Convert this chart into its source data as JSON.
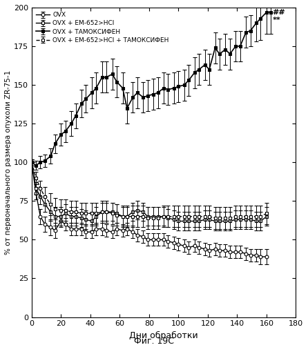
{
  "xlabel": "Дни обработки",
  "ylabel": "% от первоначального размера опухоли ZR-75-1",
  "figsize": [
    4.46,
    5.0
  ],
  "dpi": 100,
  "xlim": [
    0,
    180
  ],
  "ylim": [
    0,
    200
  ],
  "xticks": [
    0,
    20,
    40,
    60,
    80,
    100,
    120,
    140,
    160,
    180
  ],
  "yticks": [
    0,
    25,
    50,
    75,
    100,
    125,
    150,
    175,
    200
  ],
  "caption": "Фиг. 19С",
  "ovx": {
    "x": [
      0,
      3,
      6,
      9,
      13,
      16,
      20,
      23,
      27,
      30,
      34,
      37,
      41,
      44,
      48,
      51,
      55,
      58,
      62,
      65,
      69,
      72,
      76,
      79,
      83,
      86,
      90,
      93,
      97,
      100,
      104,
      107,
      111,
      114,
      118,
      121,
      125,
      128,
      132,
      135,
      139,
      142,
      146,
      149,
      153,
      156,
      160
    ],
    "y": [
      100,
      80,
      65,
      60,
      58,
      56,
      62,
      60,
      57,
      57,
      57,
      55,
      55,
      57,
      57,
      56,
      55,
      57,
      56,
      57,
      55,
      53,
      52,
      50,
      50,
      50,
      50,
      49,
      48,
      47,
      46,
      45,
      46,
      45,
      44,
      43,
      44,
      43,
      43,
      42,
      42,
      42,
      41,
      40,
      40,
      39,
      39
    ],
    "yerr": [
      2,
      4,
      5,
      5,
      5,
      5,
      4,
      4,
      4,
      4,
      4,
      4,
      4,
      4,
      4,
      4,
      4,
      4,
      4,
      4,
      4,
      4,
      4,
      4,
      4,
      4,
      4,
      4,
      4,
      4,
      4,
      4,
      4,
      4,
      4,
      4,
      4,
      4,
      4,
      4,
      4,
      4,
      4,
      4,
      4,
      5,
      5
    ],
    "color": "#000000",
    "marker": "o",
    "mfc": "white",
    "linestyle": "-",
    "label": "OVX",
    "lw": 1.0
  },
  "ovx_em": {
    "x": [
      0,
      3,
      6,
      9,
      13,
      16,
      20,
      23,
      27,
      30,
      34,
      37,
      41,
      44,
      48,
      51,
      55,
      58,
      62,
      65,
      69,
      72,
      76,
      79,
      83,
      86,
      90,
      93,
      97,
      100,
      104,
      107,
      111,
      114,
      118,
      121,
      125,
      128,
      132,
      135,
      139,
      142,
      146,
      149,
      153,
      156,
      160
    ],
    "y": [
      100,
      83,
      78,
      73,
      68,
      65,
      65,
      67,
      65,
      65,
      64,
      63,
      62,
      65,
      68,
      68,
      68,
      67,
      65,
      65,
      68,
      69,
      68,
      65,
      65,
      65,
      65,
      64,
      63,
      62,
      62,
      62,
      62,
      62,
      63,
      63,
      62,
      62,
      62,
      62,
      63,
      63,
      63,
      63,
      62,
      62,
      65
    ],
    "yerr": [
      2,
      4,
      5,
      5,
      6,
      6,
      6,
      6,
      6,
      6,
      6,
      6,
      6,
      6,
      6,
      6,
      6,
      6,
      6,
      6,
      6,
      6,
      6,
      6,
      6,
      6,
      6,
      6,
      6,
      6,
      6,
      6,
      6,
      6,
      6,
      6,
      6,
      6,
      6,
      6,
      6,
      6,
      6,
      6,
      6,
      6,
      6
    ],
    "color": "#000000",
    "marker": "s",
    "mfc": "white",
    "linestyle": "-",
    "label": "OVX + EM-652>HCl",
    "lw": 1.0
  },
  "ovx_tam": {
    "x": [
      0,
      3,
      6,
      9,
      13,
      16,
      20,
      23,
      27,
      30,
      34,
      37,
      41,
      44,
      48,
      51,
      55,
      58,
      62,
      65,
      69,
      72,
      76,
      79,
      83,
      86,
      90,
      93,
      97,
      100,
      104,
      107,
      111,
      114,
      118,
      121,
      125,
      128,
      132,
      135,
      139,
      142,
      146,
      149,
      153,
      156,
      160,
      163
    ],
    "y": [
      100,
      98,
      100,
      101,
      104,
      112,
      118,
      120,
      125,
      130,
      138,
      141,
      145,
      148,
      155,
      155,
      157,
      152,
      148,
      135,
      142,
      145,
      142,
      143,
      144,
      145,
      148,
      147,
      148,
      149,
      150,
      153,
      158,
      160,
      163,
      160,
      174,
      170,
      173,
      170,
      175,
      175,
      184,
      185,
      190,
      193,
      197,
      197
    ],
    "yerr": [
      2,
      3,
      4,
      4,
      5,
      6,
      7,
      7,
      8,
      8,
      9,
      9,
      10,
      10,
      10,
      10,
      10,
      10,
      10,
      10,
      10,
      10,
      10,
      10,
      10,
      10,
      10,
      10,
      10,
      10,
      10,
      10,
      10,
      10,
      10,
      10,
      10,
      10,
      10,
      10,
      10,
      10,
      10,
      10,
      12,
      14,
      14,
      14
    ],
    "color": "#000000",
    "marker": "s",
    "mfc": "#000000",
    "linestyle": "-",
    "label": "OVX + ТАМОКСИФЕН",
    "lw": 1.2
  },
  "ovx_em_tam": {
    "x": [
      0,
      3,
      6,
      9,
      13,
      16,
      20,
      23,
      27,
      30,
      34,
      37,
      41,
      44,
      48,
      51,
      55,
      58,
      62,
      65,
      69,
      72,
      76,
      79,
      83,
      86,
      90,
      93,
      97,
      100,
      104,
      107,
      111,
      114,
      118,
      121,
      125,
      128,
      132,
      135,
      139,
      142,
      146,
      149,
      153,
      156,
      160
    ],
    "y": [
      100,
      90,
      83,
      78,
      73,
      70,
      69,
      69,
      68,
      68,
      67,
      67,
      67,
      67,
      68,
      68,
      67,
      66,
      65,
      65,
      65,
      65,
      65,
      64,
      64,
      64,
      65,
      65,
      65,
      65,
      65,
      65,
      65,
      65,
      65,
      65,
      64,
      64,
      64,
      64,
      65,
      65,
      65,
      65,
      65,
      65,
      67
    ],
    "yerr": [
      2,
      4,
      5,
      6,
      7,
      7,
      7,
      7,
      7,
      7,
      7,
      7,
      7,
      7,
      7,
      7,
      7,
      7,
      7,
      7,
      7,
      7,
      7,
      7,
      7,
      7,
      7,
      7,
      7,
      7,
      7,
      7,
      7,
      7,
      7,
      7,
      7,
      7,
      7,
      7,
      7,
      7,
      7,
      7,
      7,
      7,
      7
    ],
    "color": "#000000",
    "marker": "s",
    "mfc": "white",
    "linestyle": "--",
    "label": "OVX + EM-652>HCl + ТАМОКСИФЕН",
    "lw": 1.0
  }
}
